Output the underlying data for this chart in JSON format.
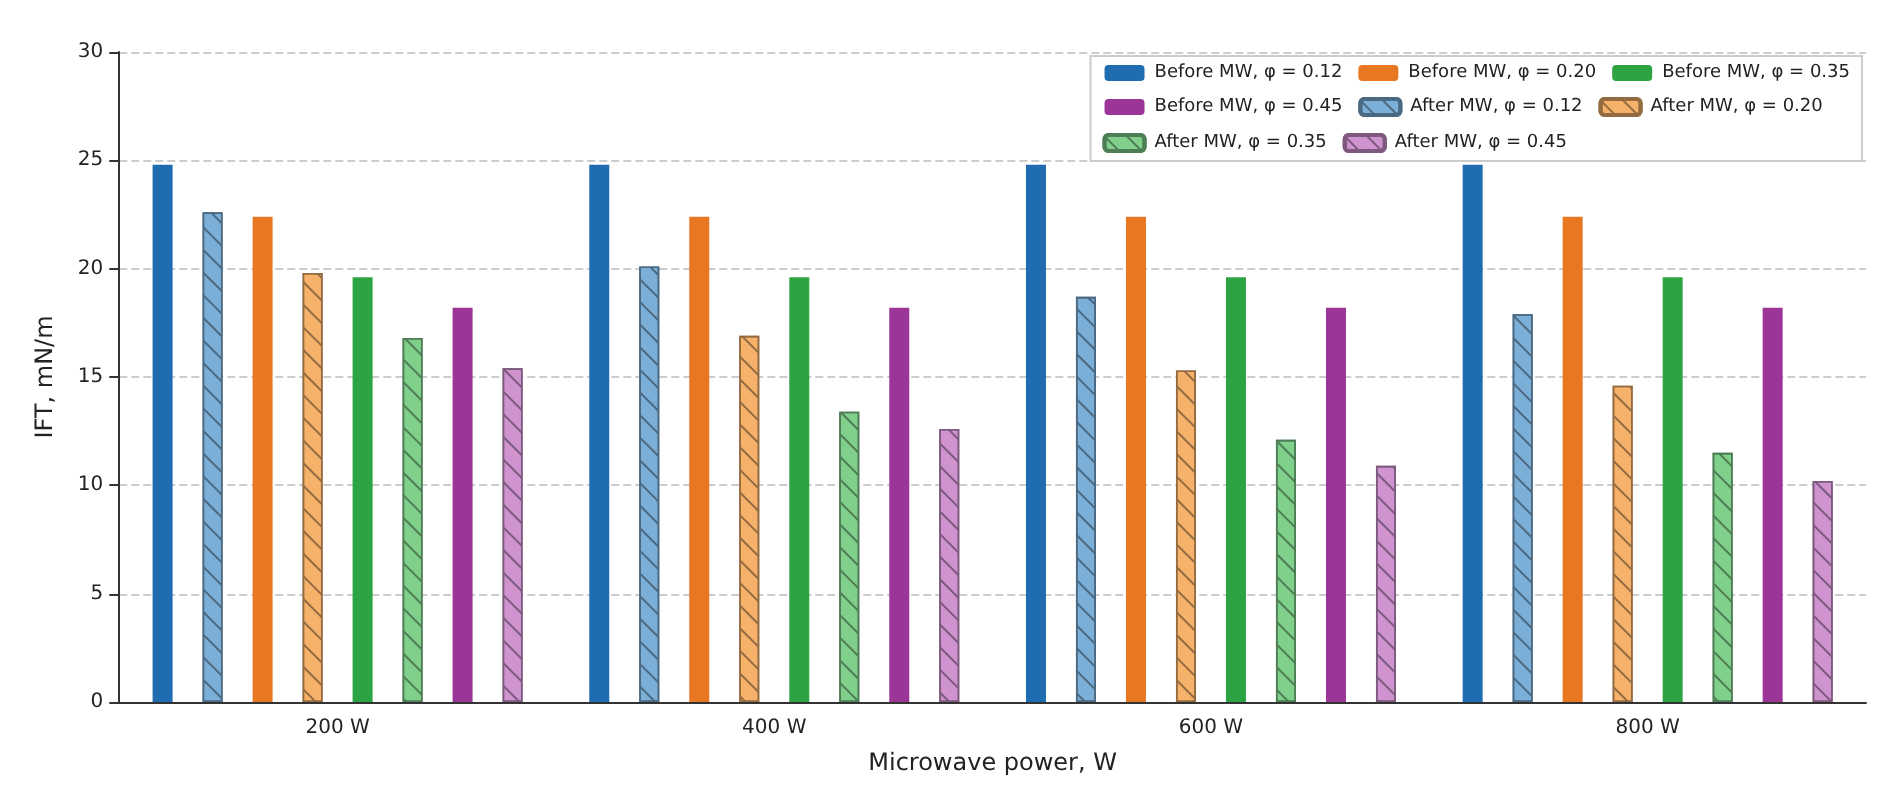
{
  "chart_data": {
    "type": "bar",
    "xlabel": "Microwave power, W",
    "ylabel": "IFT, mN/m",
    "categories": [
      "200 W",
      "400 W",
      "600 W",
      "800 W"
    ],
    "series": [
      {
        "name": "Before MW, φ = 0.12",
        "color": "#1f6cb0",
        "values": [
          24.8,
          24.8,
          24.8,
          24.8
        ]
      },
      {
        "name": "After MW, φ = 0.12",
        "color": "#7bafd8",
        "values": [
          22.6,
          20.1,
          18.7,
          17.9
        ]
      },
      {
        "name": "Before MW, φ = 0.20",
        "color": "#e87722",
        "values": [
          22.4,
          22.4,
          22.4,
          22.4
        ]
      },
      {
        "name": "After MW, φ = 0.20",
        "color": "#f6b26b",
        "values": [
          19.8,
          16.9,
          15.3,
          14.6
        ]
      },
      {
        "name": "Before MW, φ = 0.35",
        "color": "#2ca444",
        "values": [
          19.6,
          19.6,
          19.6,
          19.6
        ]
      },
      {
        "name": "After MW, φ = 0.35",
        "color": "#80d08c",
        "values": [
          16.8,
          13.4,
          12.1,
          11.5
        ]
      },
      {
        "name": "Before MW, φ = 0.45",
        "color": "#9b3597",
        "values": [
          18.2,
          18.2,
          18.2,
          18.2
        ]
      },
      {
        "name": "After MW, φ = 0.45",
        "color": "#cf94d0",
        "values": [
          15.4,
          12.6,
          10.9,
          10.2
        ]
      }
    ],
    "ylim": [
      0,
      30
    ],
    "yticks": [
      0,
      5,
      10,
      15,
      20,
      25,
      30
    ],
    "grid": "y",
    "legend": "top right"
  }
}
